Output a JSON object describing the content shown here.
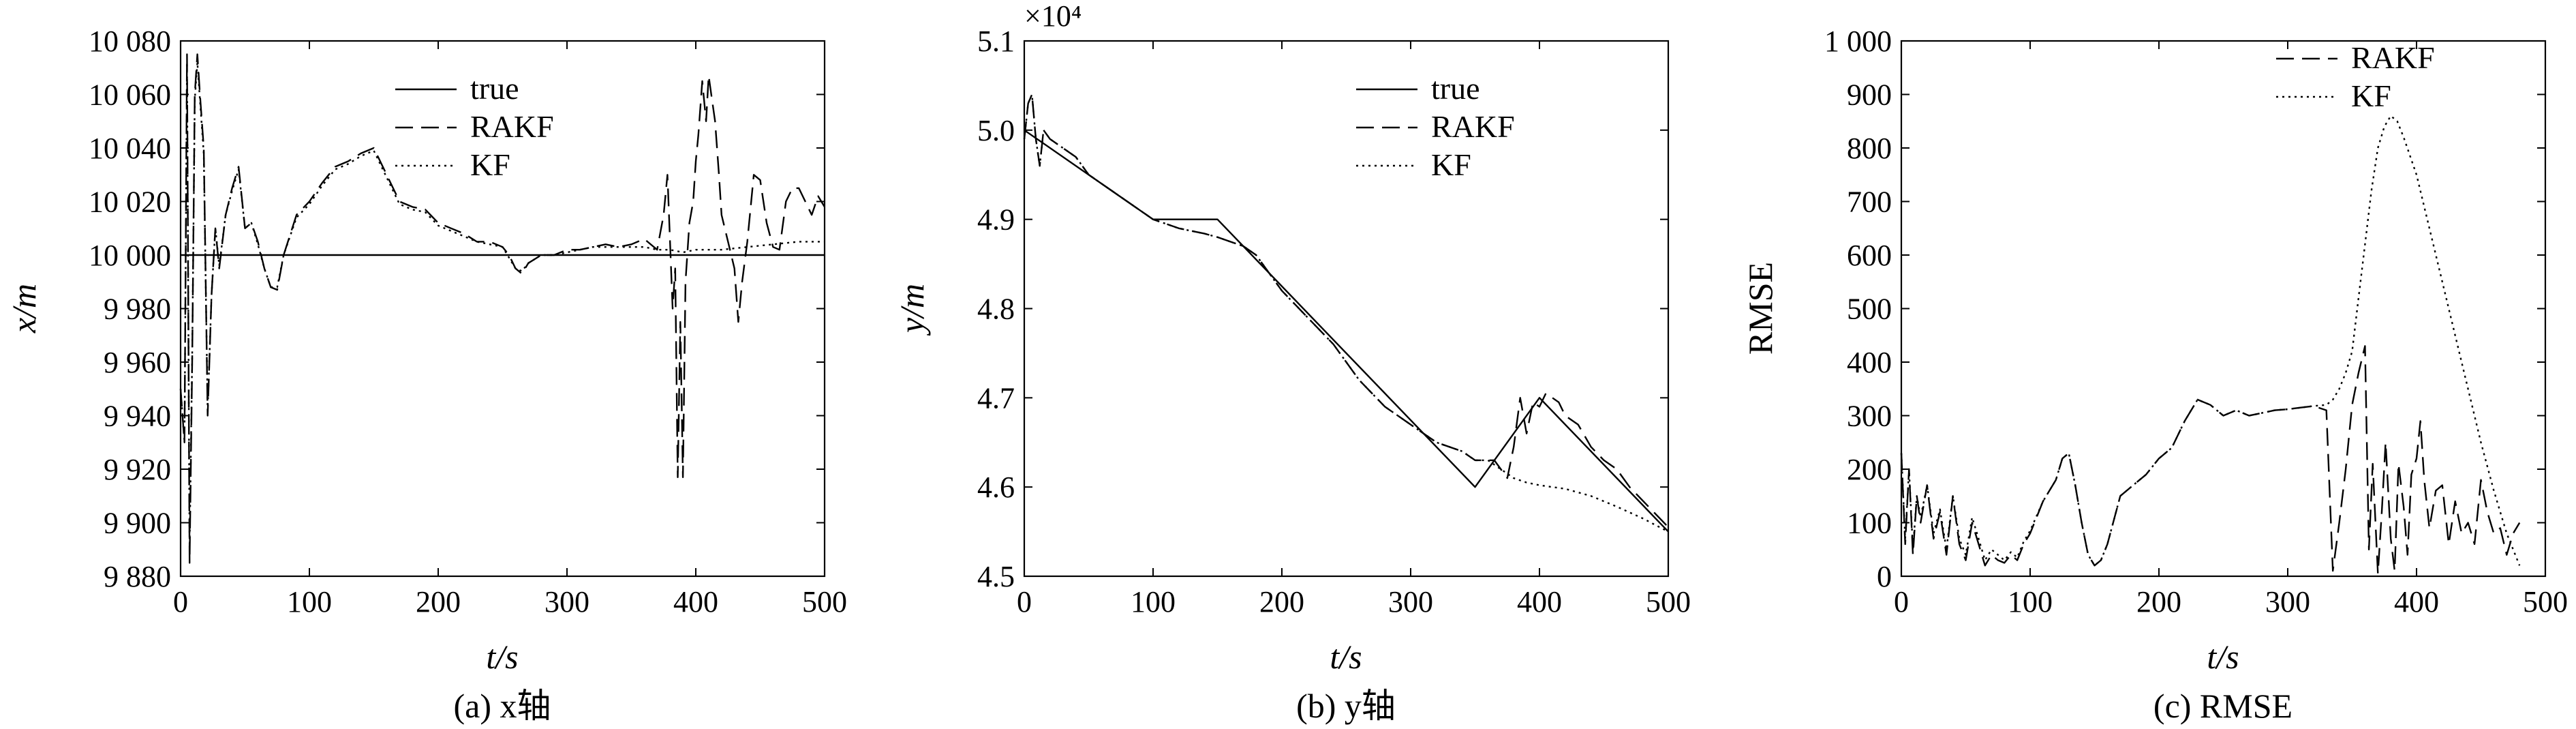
{
  "figure": {
    "panels": [
      {
        "id": "a",
        "caption": "(a) x轴",
        "xlabel": "t/s",
        "ylabel": "x/m",
        "legend_placement": "top-right"
      },
      {
        "id": "b",
        "caption": "(b) y轴",
        "xlabel": "t/s",
        "ylabel": "y/m",
        "multiplier": "×10⁴",
        "legend_placement": "top-right"
      },
      {
        "id": "c",
        "caption": "(c) RMSE",
        "xlabel": "t/s",
        "ylabel": "RMSE",
        "legend_placement": "top-right"
      }
    ]
  },
  "chart_data": [
    {
      "type": "line",
      "xlim": [
        0,
        500
      ],
      "ylim": [
        9880,
        10080
      ],
      "xticks": [
        0,
        100,
        200,
        300,
        400,
        500
      ],
      "xtick_labels": [
        "0",
        "100",
        "200",
        "300",
        "400",
        "500"
      ],
      "yticks": [
        9880,
        9900,
        9920,
        9940,
        9960,
        9980,
        10000,
        10020,
        10040,
        10060,
        10080
      ],
      "ytick_labels": [
        "9 880",
        "9 900",
        "9 920",
        "9 940",
        "9 960",
        "9 980",
        "10 000",
        "10 020",
        "10 040",
        "10 060",
        "10 080"
      ],
      "grid": false,
      "series": [
        {
          "name": "true",
          "style": "solid",
          "x": [
            0,
            500
          ],
          "y": [
            10000,
            10000
          ]
        },
        {
          "name": "RAKF",
          "style": "dashed",
          "x": [
            0,
            3,
            5,
            7,
            9,
            11,
            13,
            15,
            18,
            21,
            24,
            27,
            30,
            35,
            40,
            45,
            50,
            55,
            60,
            65,
            70,
            75,
            80,
            90,
            100,
            110,
            120,
            130,
            140,
            150,
            160,
            170,
            180,
            190,
            200,
            210,
            220,
            230,
            240,
            250,
            255,
            260,
            265,
            270,
            280,
            290,
            300,
            310,
            320,
            330,
            340,
            350,
            360,
            370,
            375,
            378,
            380,
            382,
            384,
            386,
            388,
            390,
            392,
            395,
            398,
            400,
            402,
            405,
            408,
            410,
            412,
            415,
            418,
            420,
            425,
            430,
            433,
            436,
            440,
            445,
            450,
            455,
            460,
            465,
            470,
            475,
            480,
            485,
            490,
            495,
            500
          ],
          "y": [
            9950,
            9930,
            10075,
            9885,
            9960,
            10060,
            10075,
            10060,
            10040,
            9940,
            9985,
            10010,
            9995,
            10015,
            10025,
            10033,
            10010,
            10012,
            10005,
            9995,
            9988,
            9987,
            10000,
            10015,
            10020,
            10027,
            10033,
            10035,
            10038,
            10040,
            10030,
            10020,
            10018,
            10017,
            10012,
            10010,
            10008,
            10005,
            10005,
            10003,
            10000,
            9995,
            9993,
            9997,
            10000,
            10000,
            10002,
            10002,
            10003,
            10004,
            10003,
            10004,
            10006,
            10002,
            10015,
            10030,
            10005,
            9980,
            9995,
            9917,
            9975,
            9917,
            9990,
            10012,
            10020,
            10035,
            10045,
            10065,
            10050,
            10067,
            10060,
            10050,
            10030,
            10015,
            10005,
            9995,
            9975,
            9990,
            10005,
            10030,
            10028,
            10012,
            10003,
            10002,
            10020,
            10025,
            10025,
            10020,
            10015,
            10022,
            10018
          ]
        },
        {
          "name": "KF",
          "style": "dotted",
          "x": [
            0,
            3,
            5,
            7,
            9,
            11,
            13,
            15,
            18,
            21,
            24,
            27,
            30,
            35,
            40,
            45,
            50,
            55,
            60,
            65,
            70,
            75,
            80,
            90,
            100,
            110,
            120,
            130,
            140,
            150,
            160,
            170,
            180,
            190,
            200,
            210,
            220,
            230,
            240,
            250,
            255,
            260,
            265,
            270,
            280,
            290,
            300,
            310,
            320,
            330,
            340,
            350,
            360,
            370,
            380,
            390,
            400,
            420,
            440,
            460,
            480,
            500
          ],
          "y": [
            9950,
            9930,
            10072,
            9890,
            9962,
            10058,
            10072,
            10058,
            10038,
            9942,
            9985,
            10010,
            9996,
            10015,
            10024,
            10032,
            10010,
            10012,
            10004,
            9995,
            9988,
            9988,
            10000,
            10014,
            10019,
            10026,
            10032,
            10034,
            10037,
            10039,
            10029,
            10019,
            10017,
            10016,
            10011,
            10009,
            10007,
            10005,
            10004,
            10003,
            9999,
            9995,
            9994,
            9997,
            10000,
            10000,
            10001,
            10002,
            10003,
            10003,
            10003,
            10003,
            10003,
            10002,
            10002,
            10001,
            10002,
            10002,
            10003,
            10004,
            10005,
            10005
          ]
        }
      ]
    },
    {
      "type": "line",
      "xlim": [
        0,
        500
      ],
      "ylim": [
        4.5,
        5.1
      ],
      "xticks": [
        0,
        100,
        200,
        300,
        400,
        500
      ],
      "xtick_labels": [
        "0",
        "100",
        "200",
        "300",
        "400",
        "500"
      ],
      "yticks": [
        4.5,
        4.6,
        4.7,
        4.8,
        4.9,
        5.0,
        5.1
      ],
      "ytick_labels": [
        "4.5",
        "4.6",
        "4.7",
        "4.8",
        "4.9",
        "5.0",
        "5.1"
      ],
      "grid": false,
      "series": [
        {
          "name": "true",
          "style": "solid",
          "x": [
            0,
            100,
            150,
            350,
            400,
            500
          ],
          "y": [
            5.0,
            4.9,
            4.9,
            4.6,
            4.7,
            4.55
          ]
        },
        {
          "name": "RAKF",
          "style": "dashed",
          "x": [
            0,
            3,
            6,
            9,
            12,
            15,
            20,
            30,
            40,
            50,
            60,
            70,
            80,
            90,
            100,
            110,
            120,
            130,
            140,
            150,
            160,
            170,
            180,
            200,
            220,
            240,
            260,
            280,
            300,
            320,
            340,
            350,
            360,
            365,
            370,
            375,
            380,
            385,
            390,
            395,
            400,
            405,
            410,
            415,
            420,
            430,
            440,
            450,
            460,
            470,
            480,
            490,
            500
          ],
          "y": [
            4.99,
            5.03,
            5.04,
            4.99,
            4.96,
            5.0,
            4.99,
            4.98,
            4.97,
            4.95,
            4.94,
            4.93,
            4.92,
            4.91,
            4.9,
            4.895,
            4.89,
            4.887,
            4.884,
            4.88,
            4.875,
            4.87,
            4.86,
            4.82,
            4.79,
            4.76,
            4.72,
            4.69,
            4.67,
            4.65,
            4.64,
            4.63,
            4.63,
            4.63,
            4.62,
            4.61,
            4.645,
            4.7,
            4.66,
            4.695,
            4.69,
            4.705,
            4.7,
            4.695,
            4.68,
            4.67,
            4.645,
            4.63,
            4.62,
            4.6,
            4.585,
            4.57,
            4.555
          ]
        },
        {
          "name": "KF",
          "style": "dotted",
          "x": [
            0,
            3,
            6,
            9,
            12,
            15,
            20,
            30,
            40,
            50,
            60,
            70,
            80,
            90,
            100,
            110,
            120,
            130,
            140,
            150,
            160,
            170,
            180,
            200,
            220,
            240,
            260,
            280,
            300,
            320,
            340,
            350,
            360,
            370,
            380,
            390,
            400,
            410,
            420,
            440,
            460,
            480,
            500
          ],
          "y": [
            4.99,
            5.03,
            5.04,
            4.99,
            4.96,
            5.0,
            4.99,
            4.98,
            4.97,
            4.95,
            4.94,
            4.93,
            4.92,
            4.91,
            4.9,
            4.895,
            4.89,
            4.887,
            4.884,
            4.88,
            4.875,
            4.87,
            4.86,
            4.82,
            4.79,
            4.76,
            4.72,
            4.69,
            4.67,
            4.65,
            4.64,
            4.63,
            4.63,
            4.62,
            4.61,
            4.605,
            4.602,
            4.6,
            4.598,
            4.59,
            4.578,
            4.565,
            4.55
          ]
        }
      ]
    },
    {
      "type": "line",
      "xlim": [
        0,
        500
      ],
      "ylim": [
        0,
        1000
      ],
      "xticks": [
        0,
        100,
        200,
        300,
        400,
        500
      ],
      "xtick_labels": [
        "0",
        "100",
        "200",
        "300",
        "400",
        "500"
      ],
      "yticks": [
        0,
        100,
        200,
        300,
        400,
        500,
        600,
        700,
        800,
        900,
        1000
      ],
      "ytick_labels": [
        "0",
        "100",
        "200",
        "300",
        "400",
        "500",
        "600",
        "700",
        "800",
        "900",
        "1 000"
      ],
      "grid": false,
      "series": [
        {
          "name": "RAKF",
          "style": "dashed",
          "x": [
            0,
            3,
            6,
            9,
            12,
            15,
            20,
            25,
            30,
            35,
            40,
            45,
            50,
            55,
            60,
            65,
            70,
            75,
            80,
            85,
            90,
            95,
            100,
            110,
            120,
            125,
            130,
            135,
            140,
            145,
            150,
            155,
            160,
            170,
            180,
            190,
            200,
            210,
            220,
            225,
            230,
            240,
            250,
            260,
            270,
            280,
            290,
            300,
            310,
            320,
            330,
            335,
            340,
            345,
            350,
            355,
            360,
            363,
            366,
            370,
            373,
            376,
            380,
            383,
            386,
            390,
            393,
            396,
            400,
            403,
            406,
            410,
            415,
            420,
            425,
            430,
            435,
            440,
            445,
            450,
            455,
            460,
            465,
            470,
            475,
            480
          ],
          "y": [
            230,
            60,
            200,
            40,
            150,
            100,
            170,
            70,
            120,
            40,
            150,
            60,
            30,
            100,
            60,
            20,
            40,
            30,
            25,
            40,
            30,
            60,
            80,
            140,
            180,
            220,
            230,
            170,
            100,
            40,
            20,
            30,
            60,
            150,
            170,
            190,
            220,
            240,
            290,
            310,
            330,
            320,
            300,
            310,
            300,
            305,
            310,
            312,
            315,
            318,
            310,
            10,
            100,
            200,
            320,
            380,
            430,
            50,
            210,
            5,
            120,
            250,
            70,
            10,
            210,
            130,
            40,
            190,
            220,
            290,
            180,
            90,
            160,
            170,
            60,
            140,
            80,
            100,
            60,
            180,
            120,
            80,
            90,
            40,
            80,
            100
          ]
        },
        {
          "name": "KF",
          "style": "dotted",
          "x": [
            0,
            3,
            6,
            9,
            12,
            15,
            20,
            25,
            30,
            35,
            40,
            45,
            50,
            55,
            60,
            65,
            70,
            75,
            80,
            85,
            90,
            95,
            100,
            110,
            120,
            125,
            130,
            135,
            140,
            145,
            150,
            155,
            160,
            170,
            180,
            190,
            200,
            210,
            220,
            225,
            230,
            240,
            250,
            260,
            270,
            280,
            290,
            300,
            310,
            320,
            330,
            335,
            340,
            345,
            350,
            355,
            360,
            365,
            370,
            375,
            380,
            385,
            390,
            400,
            410,
            420,
            430,
            440,
            450,
            460,
            470,
            480
          ],
          "y": [
            230,
            70,
            200,
            50,
            150,
            110,
            170,
            80,
            125,
            50,
            150,
            70,
            40,
            110,
            70,
            30,
            50,
            40,
            30,
            45,
            35,
            65,
            85,
            140,
            180,
            220,
            230,
            170,
            100,
            40,
            20,
            30,
            60,
            150,
            170,
            190,
            220,
            240,
            290,
            310,
            330,
            320,
            300,
            310,
            300,
            305,
            310,
            312,
            315,
            318,
            320,
            330,
            350,
            380,
            420,
            520,
            620,
            720,
            800,
            840,
            860,
            850,
            820,
            750,
            650,
            550,
            450,
            350,
            250,
            160,
            80,
            20
          ]
        }
      ]
    }
  ]
}
